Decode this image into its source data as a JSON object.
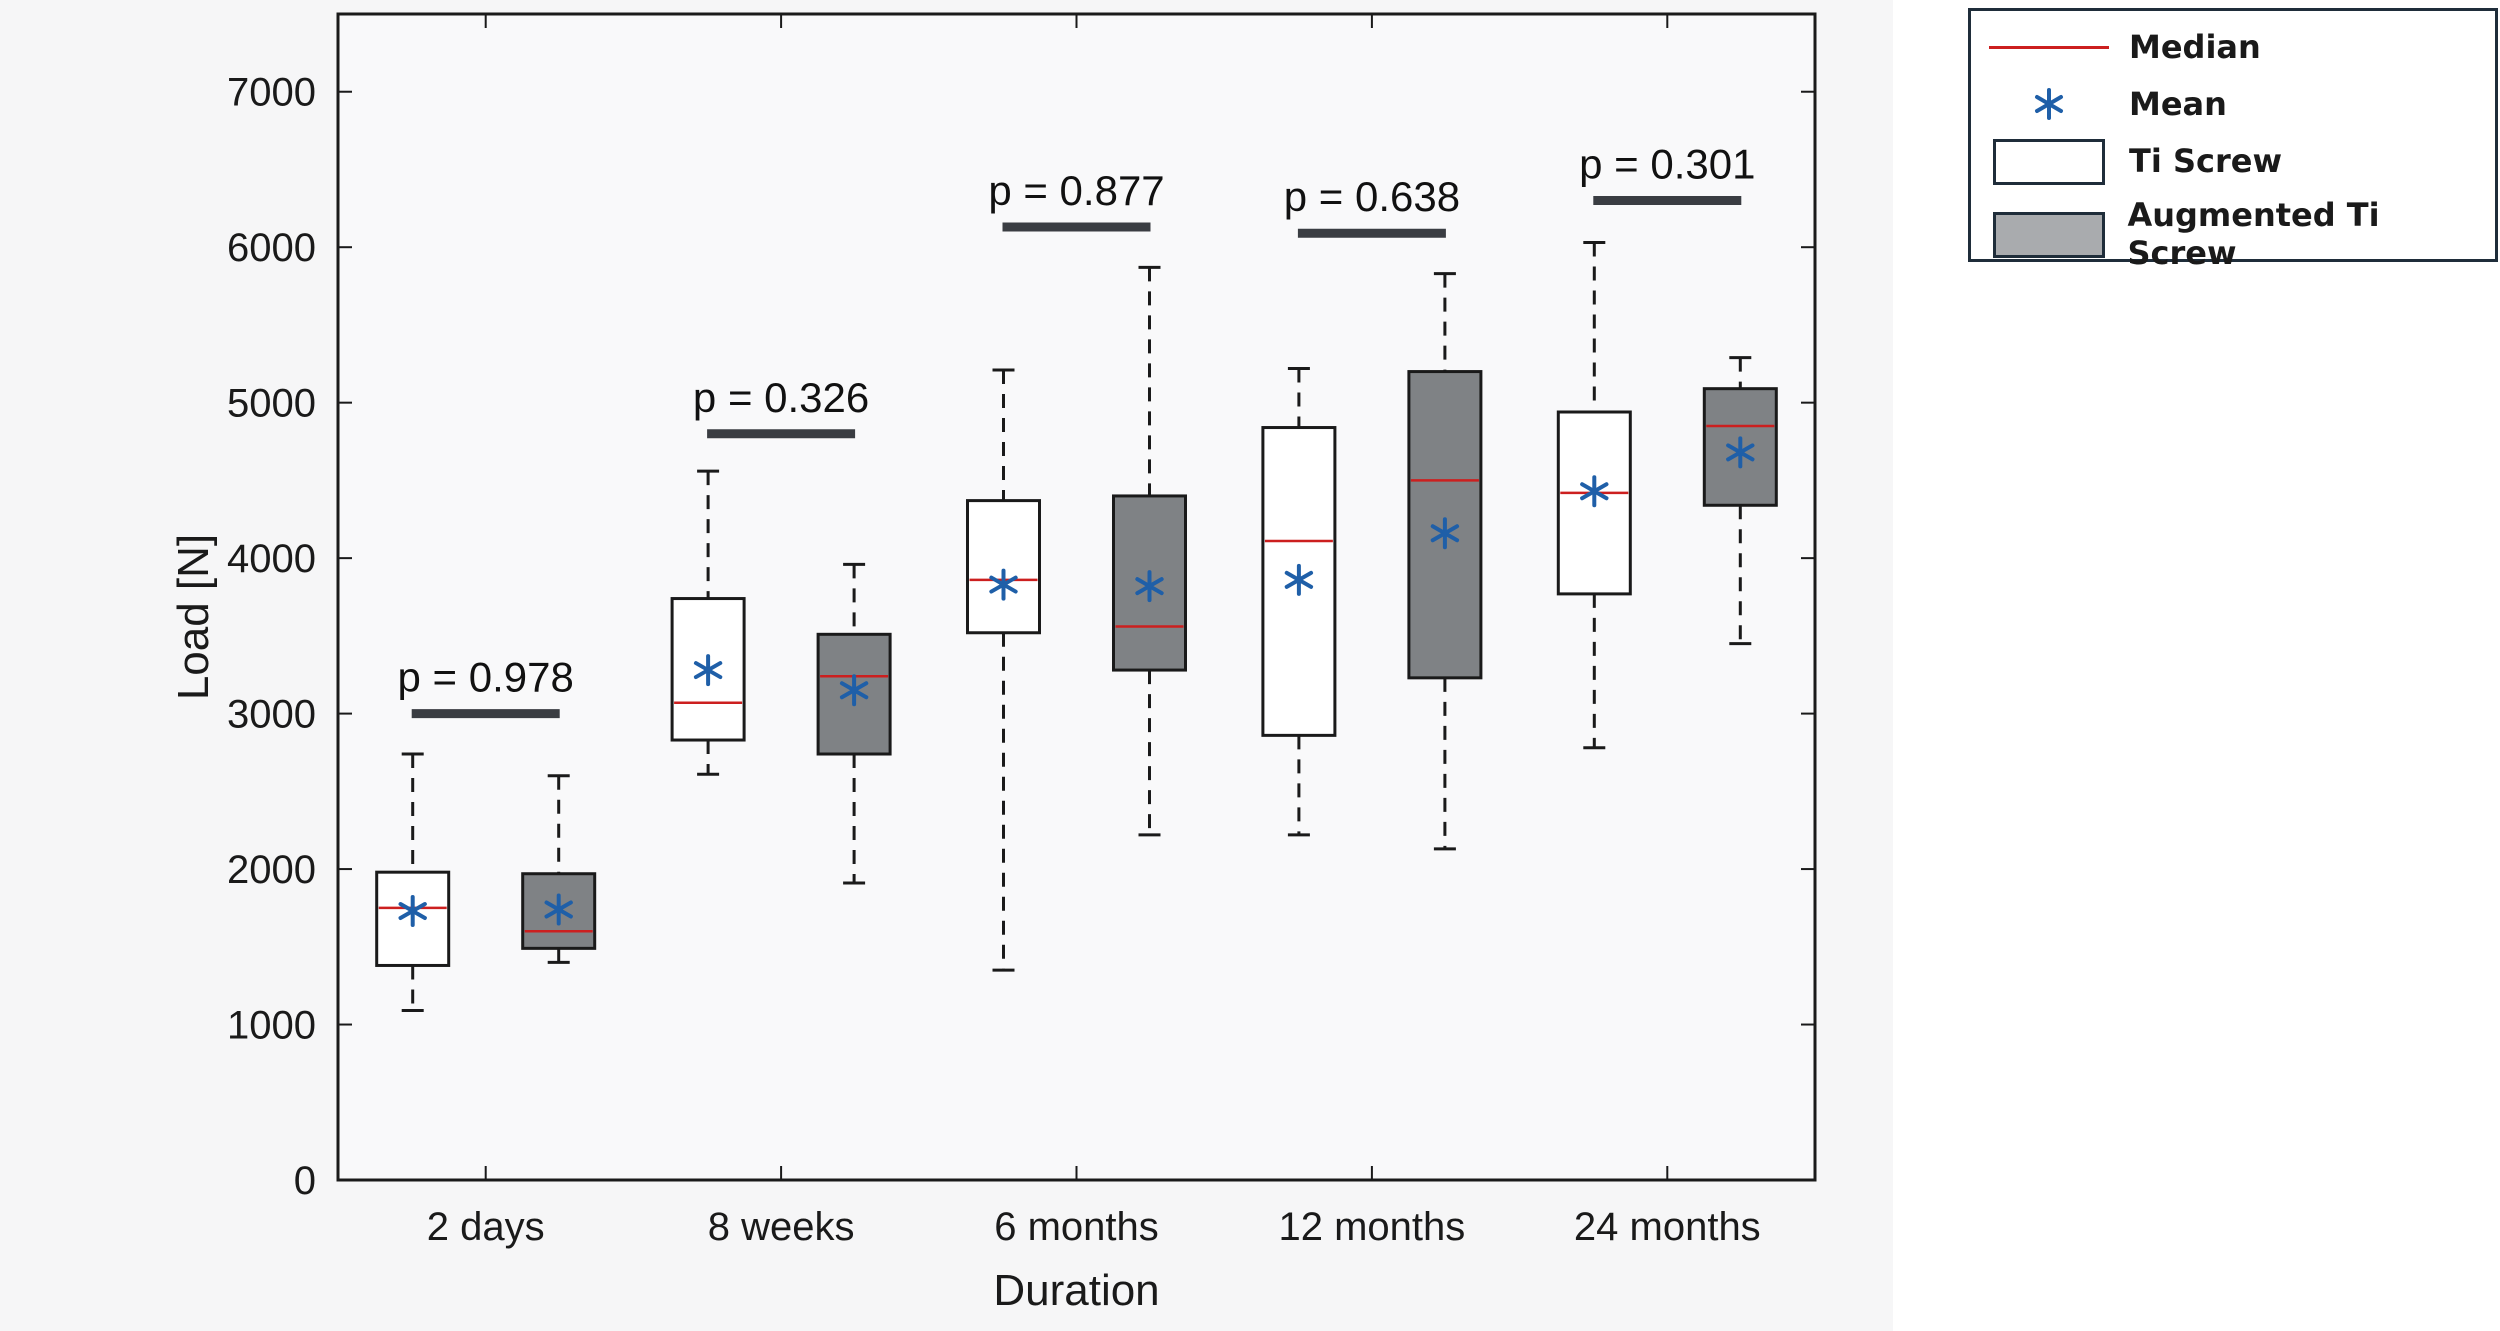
{
  "chart_data": {
    "type": "boxplot",
    "xlabel": "Duration",
    "ylabel": "Load [N]",
    "ylim": [
      0,
      7500
    ],
    "yticks": [
      0,
      1000,
      2000,
      3000,
      4000,
      5000,
      6000,
      7000
    ],
    "categories": [
      "2 days",
      "8 weeks",
      "6 months",
      "12 months",
      "24 months"
    ],
    "series": [
      {
        "name": "Ti Screw",
        "fill": "#ffffff",
        "stats": [
          {
            "min": 1090,
            "q1": 1380,
            "median": 1750,
            "q3": 1980,
            "max": 2740,
            "mean": 1730
          },
          {
            "min": 2610,
            "q1": 2830,
            "median": 3070,
            "q3": 3740,
            "max": 4560,
            "mean": 3280
          },
          {
            "min": 1350,
            "q1": 3520,
            "median": 3860,
            "q3": 4370,
            "max": 5210,
            "mean": 3830
          },
          {
            "min": 2220,
            "q1": 2860,
            "median": 4110,
            "q3": 4840,
            "max": 5220,
            "mean": 3860
          },
          {
            "min": 2780,
            "q1": 3770,
            "median": 4420,
            "q3": 4940,
            "max": 6030,
            "mean": 4430
          }
        ]
      },
      {
        "name": "Augmented Ti Screw",
        "fill": "#7f8285",
        "stats": [
          {
            "min": 1400,
            "q1": 1490,
            "median": 1600,
            "q3": 1970,
            "max": 2600,
            "mean": 1740
          },
          {
            "min": 1910,
            "q1": 2740,
            "median": 3240,
            "q3": 3510,
            "max": 3960,
            "mean": 3150
          },
          {
            "min": 2220,
            "q1": 3280,
            "median": 3560,
            "q3": 4400,
            "max": 5870,
            "mean": 3820
          },
          {
            "min": 2130,
            "q1": 3230,
            "median": 4500,
            "q3": 5200,
            "max": 5830,
            "mean": 4160
          },
          {
            "min": 3450,
            "q1": 4340,
            "median": 4850,
            "q3": 5090,
            "max": 5290,
            "mean": 4680
          }
        ]
      }
    ],
    "annotations": [
      {
        "text": "p = 0.978",
        "y": 3000
      },
      {
        "text": "p = 0.326",
        "y": 4800
      },
      {
        "text": "p = 0.877",
        "y": 6130
      },
      {
        "text": "p = 0.638",
        "y": 6090
      },
      {
        "text": "p = 0.301",
        "y": 6300
      }
    ],
    "median_color": "#cc1f1f",
    "mean_color": "#1f5fa8",
    "mean_marker": "*",
    "grid": false,
    "legend_position": "outside-top-right"
  },
  "legend": {
    "items": [
      {
        "label": "Median",
        "symbol": "median-line"
      },
      {
        "label": "Mean",
        "symbol": "mean-star"
      },
      {
        "label": "Ti Screw",
        "symbol": "white-box"
      },
      {
        "label": "Augmented Ti Screw",
        "symbol": "grey-box"
      }
    ]
  }
}
